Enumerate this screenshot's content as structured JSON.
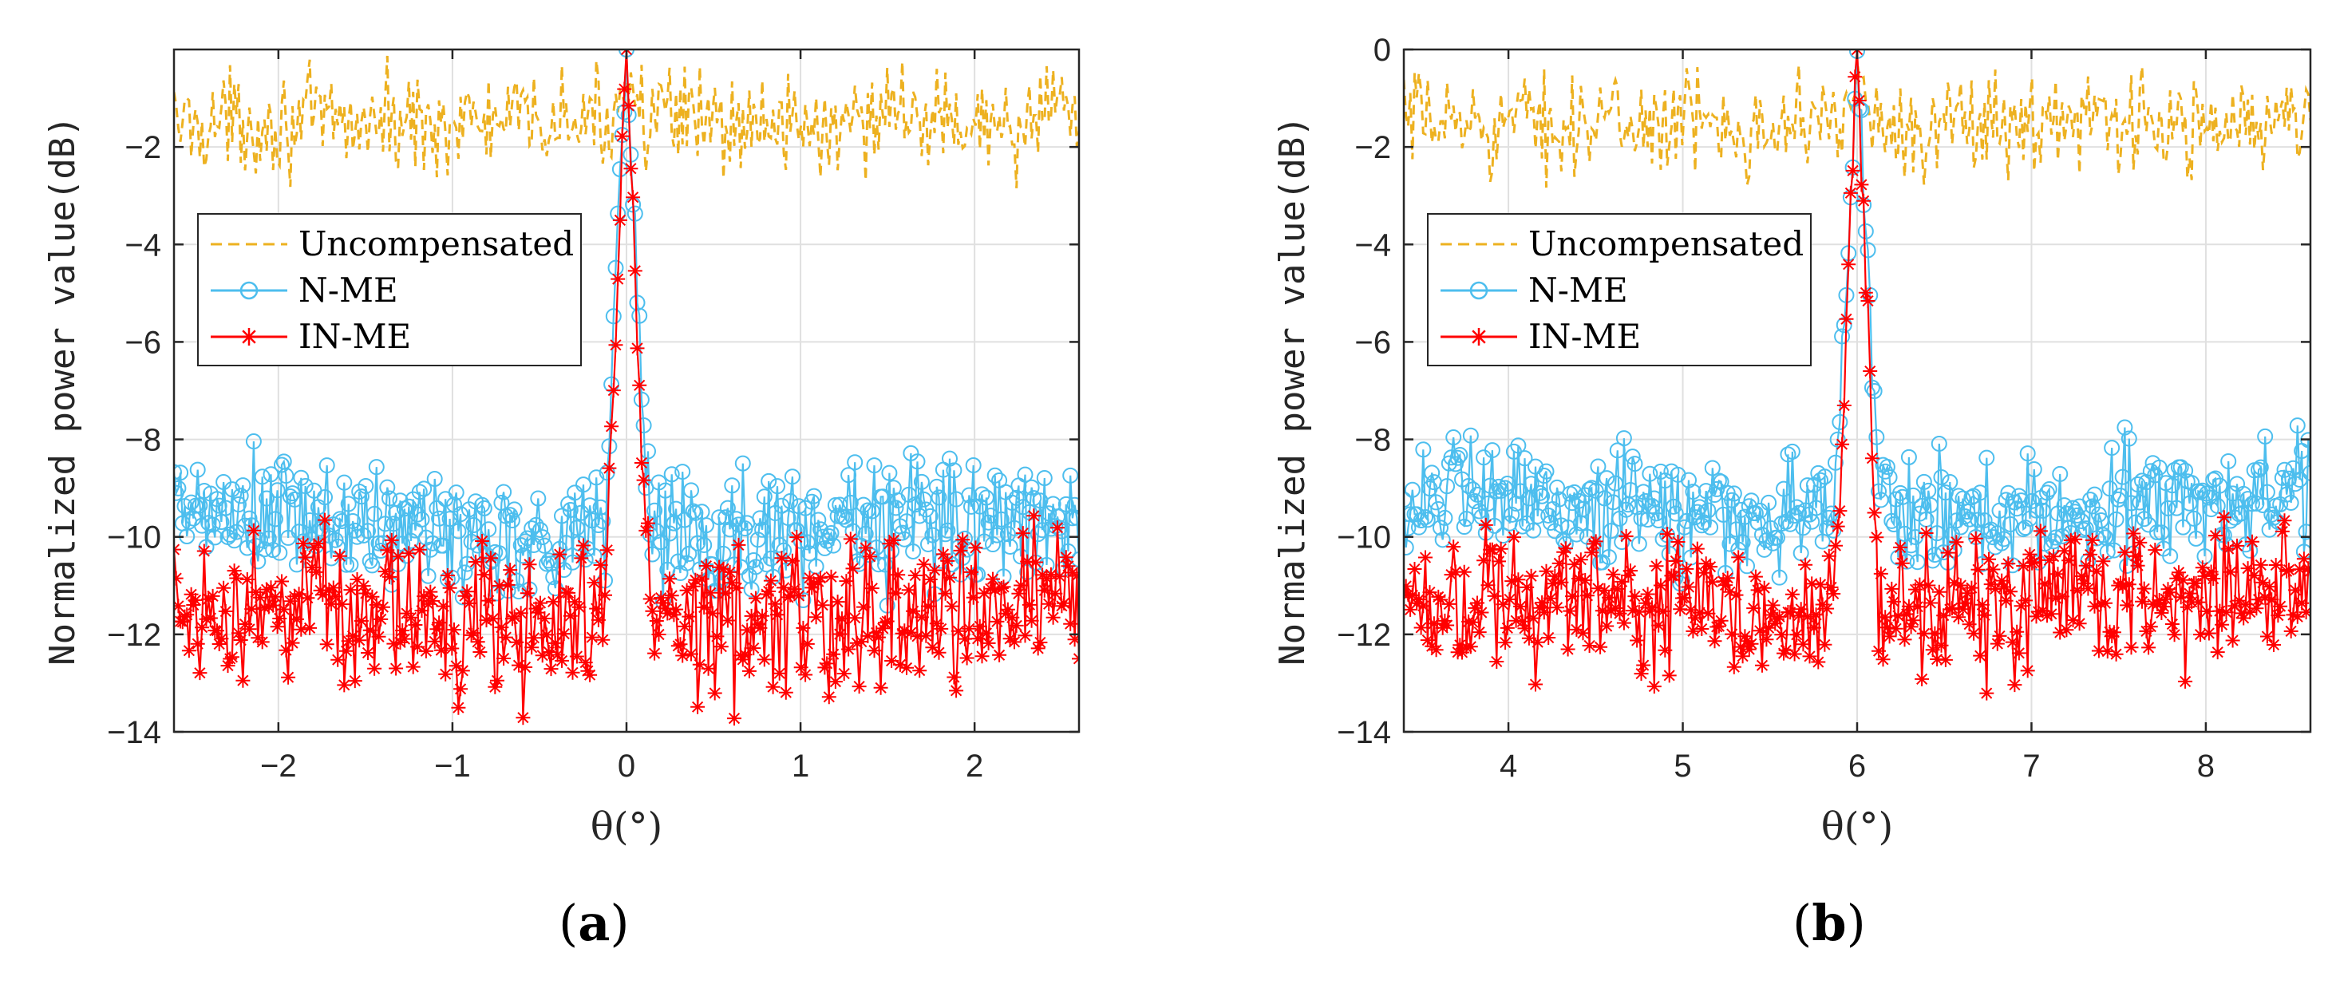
{
  "colors": {
    "uncompensated": "#EDB120",
    "nme": "#4DBEEE",
    "inme": "#FF0000",
    "grid": "#E0E0E0",
    "axis": "#262626"
  },
  "chart_data": [
    {
      "id": "a",
      "type": "line",
      "caption": "a",
      "caption_open": "(",
      "caption_close": ")",
      "xlabel": "θ(°)",
      "ylabel": "Normalized power value(dB)",
      "xlim": [
        -2.6,
        2.6
      ],
      "ylim": [
        -14,
        0
      ],
      "xticks": [
        -2,
        -1,
        0,
        1,
        2
      ],
      "xtick_labels": [
        "−2",
        "−1",
        "0",
        "1",
        "2"
      ],
      "yticks": [
        -14,
        -12,
        -10,
        -8,
        -6,
        -4,
        -2
      ],
      "ytick_labels": [
        "−14",
        "−12",
        "−10",
        "−8",
        "−6",
        "−4",
        "−2"
      ],
      "grid": true,
      "legend_position": "middle-left",
      "peak_x": 0,
      "series": [
        {
          "name": "Uncompensated",
          "style": "dashed",
          "marker": "none",
          "mean": -1.5,
          "spread": 1.1,
          "peak": 0
        },
        {
          "name": "N-ME",
          "style": "solid",
          "marker": "circle",
          "mean": -9.8,
          "spread": 1.3,
          "peak": 0
        },
        {
          "name": "IN-ME",
          "style": "solid",
          "marker": "star",
          "mean": -11.6,
          "spread": 1.5,
          "peak": 0
        }
      ]
    },
    {
      "id": "b",
      "type": "line",
      "caption": "b",
      "caption_open": "(",
      "caption_close": ")",
      "xlabel": "θ(°)",
      "ylabel": "Normalized power value(dB)",
      "xlim": [
        3.4,
        8.6
      ],
      "ylim": [
        -14,
        0
      ],
      "xticks": [
        4,
        5,
        6,
        7,
        8
      ],
      "xtick_labels": [
        "4",
        "5",
        "6",
        "7",
        "8"
      ],
      "yticks": [
        -14,
        -12,
        -10,
        -8,
        -6,
        -4,
        -2,
        0
      ],
      "ytick_labels": [
        "−14",
        "−12",
        "−10",
        "−8",
        "−6",
        "−4",
        "−2",
        "0"
      ],
      "grid": true,
      "legend_position": "middle-left",
      "peak_x": 6,
      "series": [
        {
          "name": "Uncompensated",
          "style": "dashed",
          "marker": "none",
          "mean": -1.5,
          "spread": 1.1,
          "peak": 0
        },
        {
          "name": "N-ME",
          "style": "solid",
          "marker": "circle",
          "mean": -9.4,
          "spread": 1.2,
          "peak": 0
        },
        {
          "name": "IN-ME",
          "style": "solid",
          "marker": "star",
          "mean": -11.4,
          "spread": 1.4,
          "peak": 0
        }
      ]
    }
  ]
}
